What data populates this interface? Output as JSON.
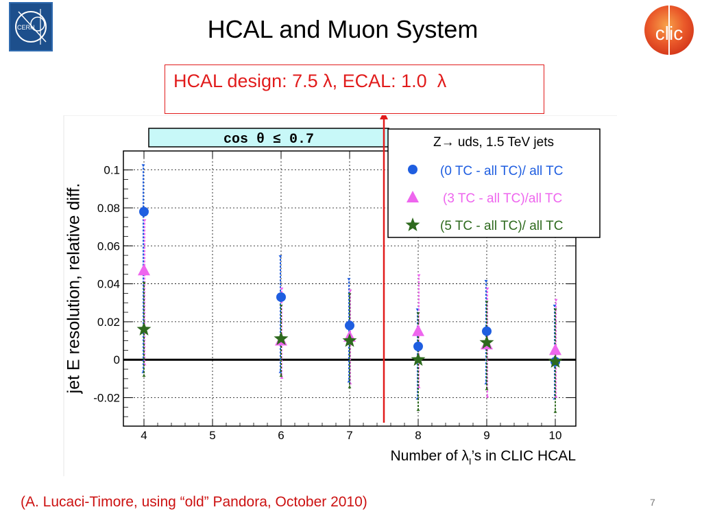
{
  "slide": {
    "title": "HCAL and Muon System",
    "callout": "HCAL design: 7.5 λ, ECAL: 1.0  λ",
    "ylabel": "jet E resolution, relative diff.",
    "footer": "(A. Lucaci-Timore, using “old” Pandora, October 2010)",
    "page_number": "7",
    "logos": {
      "left": "CERN",
      "right": "clic"
    }
  },
  "colors": {
    "callout": "#e11b1b",
    "footer": "#cc1111",
    "series_0": "#1f5ee0",
    "series_3": "#ee66ee",
    "series_5": "#2e6a1e",
    "cut_box": "#c8f8f8",
    "marker_line": "#e11b1b"
  },
  "chart_data": {
    "type": "scatter",
    "cut_label": "cos  θ  ≤  0.7",
    "xlabel": "Number of λ",
    "xlabel_sub": "I",
    "xlabel_suffix": "’s in CLIC HCAL",
    "xlim": [
      3.7,
      10.3
    ],
    "ylim": [
      -0.035,
      0.11
    ],
    "x_ticks": [
      "4",
      "5",
      "6",
      "7",
      "8",
      "9",
      "10"
    ],
    "y_ticks": [
      "0.1",
      "0.08",
      "0.06",
      "0.04",
      "0.02",
      "0",
      "-0.02"
    ],
    "y_tick_values": [
      0.1,
      0.08,
      0.06,
      0.04,
      0.02,
      0,
      -0.02
    ],
    "grid": true,
    "zero_line": true,
    "marker_x": 7.5,
    "legend": {
      "title": "Z→ uds, 1.5 TeV jets",
      "placement": "top-right"
    },
    "series": [
      {
        "name": "(0 TC - all TC)/ all TC",
        "marker": "circle",
        "x": [
          4,
          6,
          7,
          8,
          9,
          10
        ],
        "y": [
          0.078,
          0.033,
          0.018,
          0.007,
          0.015,
          -0.001
        ],
        "err_low": [
          0.085,
          0.04,
          0.03,
          0.028,
          0.028,
          0.02
        ],
        "err_high": [
          0.025,
          0.022,
          0.025,
          0.02,
          0.027,
          0.03
        ]
      },
      {
        "name": "(3 TC - all TC)/all TC",
        "marker": "triangle",
        "x": [
          4,
          6,
          7,
          8,
          9,
          10
        ],
        "y": [
          0.047,
          0.01,
          0.012,
          0.015,
          0.008,
          0.005
        ],
        "err_low": [
          0.05,
          0.02,
          0.025,
          0.03,
          0.028,
          0.025
        ],
        "err_high": [
          0.027,
          0.028,
          0.025,
          0.03,
          0.03,
          0.027
        ]
      },
      {
        "name": "(5 TC - all TC)/ all TC",
        "marker": "star",
        "x": [
          4,
          6,
          7,
          8,
          9,
          10
        ],
        "y": [
          0.016,
          0.011,
          0.01,
          0.0,
          0.009,
          -0.001
        ],
        "err_low": [
          0.025,
          0.02,
          0.025,
          0.027,
          0.025,
          0.027
        ],
        "err_high": [
          0.025,
          0.018,
          0.025,
          0.025,
          0.022,
          0.028
        ]
      }
    ]
  }
}
